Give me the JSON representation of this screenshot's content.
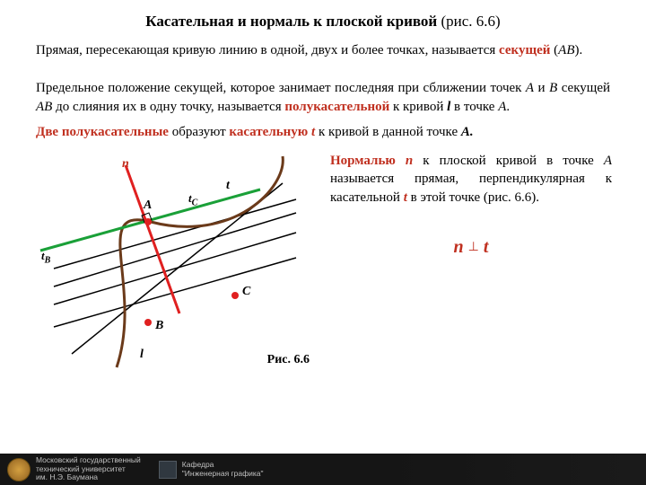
{
  "title": {
    "bold": "Касательная и  нормаль к плоской кривой",
    "rest": " (рис. 6.6)"
  },
  "p1": {
    "a": "Прямая, пересекающая кривую линию в одной, двух и более точках, называется ",
    "b": "секущей",
    "c": " (",
    "d": "АВ",
    "e": ")."
  },
  "p2": {
    "a": "Предельное положение секущей, которое занимает последняя при сближении точек ",
    "b": "А",
    "c": " и ",
    "d": "В",
    "e": " секущей ",
    "f": "АВ",
    "g": " до слияния их в одну точку, называется ",
    "h": "полукасательной",
    "i": " к кривой  ",
    "j": "l",
    "k": "  в  точке  ",
    "l": "А",
    "m": "."
  },
  "p3": {
    "a": "Две полукасательные",
    "b": " образуют ",
    "c": "касательную ",
    "d": "t",
    "e": " к кривой в данной точке ",
    "f": "А."
  },
  "right": {
    "a": "Нормалью ",
    "b": "n",
    "c": " к плоской кривой в точке ",
    "d": "А",
    "e": " называется прямая, перпендикулярная к касательной  ",
    "f": "t",
    "g": "  в этой точке (рис. 6.6)."
  },
  "formula": {
    "n": "n ",
    "perp": "⊥",
    "t": " t"
  },
  "fig_caption": "Рис. 6.6",
  "labels": {
    "n": "n",
    "t": "t",
    "tC": "tC",
    "tB": "tB",
    "A": "А",
    "B": "В",
    "C": "С",
    "l": "l"
  },
  "figure": {
    "curve_color": "#6b3a1a",
    "tangent_color": "#1aa038",
    "normal_color": "#e02020",
    "secant_color": "#000000",
    "point_color": "#e02020",
    "curve_width": 3,
    "tangent_width": 3,
    "normal_width": 3,
    "secant_width": 1.5,
    "A": [
      165,
      78
    ],
    "B": [
      165,
      190
    ],
    "C": [
      262,
      160
    ]
  },
  "footer": {
    "univ1": "Московский государственный",
    "univ2": "технический университет",
    "univ3": "им. Н.Э. Баумана",
    "dept1": "Кафедра",
    "dept2": "\"Инженерная графика\""
  }
}
